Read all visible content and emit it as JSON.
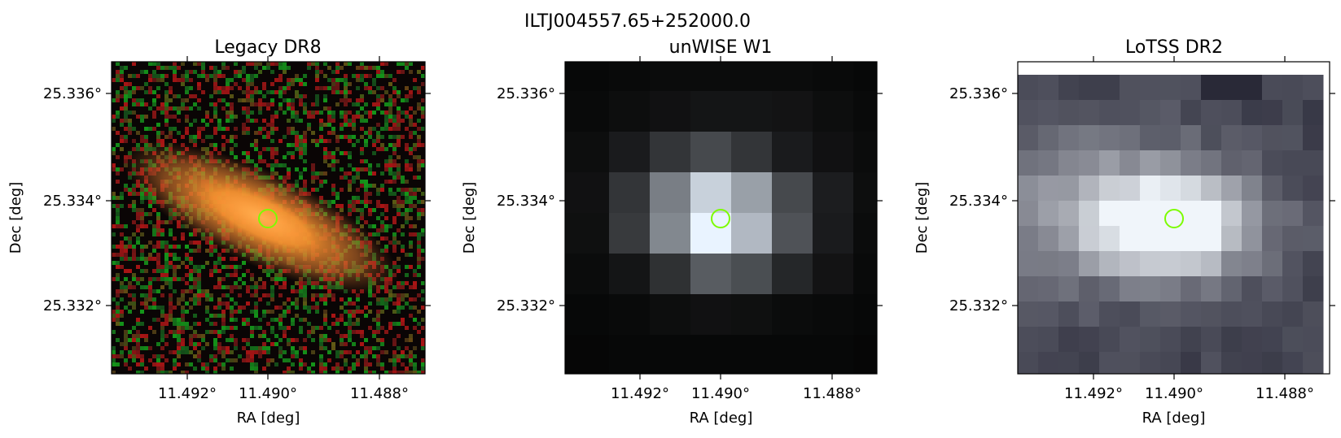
{
  "figure": {
    "title": "ILTJ004557.65+252000.0",
    "marker_color": "#7cfc00"
  },
  "panels": [
    {
      "name": "legacy",
      "title": "Legacy DR8",
      "xlabel": "RA [deg]",
      "ylabel": "Dec [deg]",
      "xticks": [
        "11.492°",
        "11.490°",
        "11.488°"
      ],
      "yticks": [
        "25.336°",
        "25.334°",
        "25.332°"
      ]
    },
    {
      "name": "unwise",
      "title": "unWISE W1",
      "xlabel": "RA [deg]",
      "ylabel": "Dec [deg]",
      "xticks": [
        "11.492°",
        "11.490°",
        "11.488°"
      ],
      "yticks": [
        "25.336°",
        "25.334°",
        "25.332°"
      ]
    },
    {
      "name": "lotss",
      "title": "LoTSS DR2",
      "xlabel": "RA [deg]",
      "ylabel": "Dec [deg]",
      "xticks": [
        "11.492°",
        "11.490°",
        "11.488°"
      ],
      "yticks": [
        "25.336°",
        "25.334°",
        "25.332°"
      ]
    }
  ]
}
